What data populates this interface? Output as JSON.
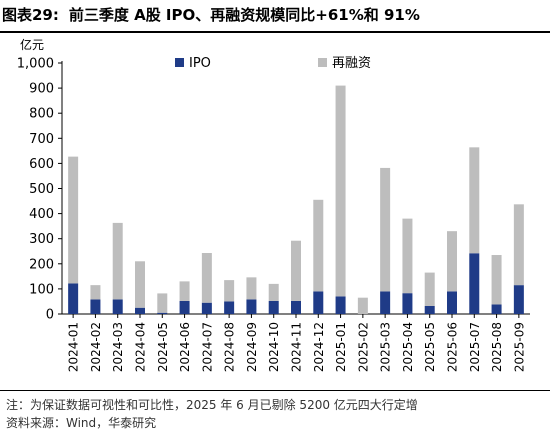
{
  "header": {
    "figure_label": "图表29:",
    "title": "前三季度 A股 IPO、再融资规模同比+61%和 91%"
  },
  "unit_label": "亿元",
  "footer": {
    "note": "注：为保证数据可视性和可比性，2025 年 6 月已剔除 5200 亿元四大行定增",
    "source": "资料来源：Wind，华泰研究"
  },
  "colors": {
    "ipo": "#1f3b87",
    "refinancing": "#bdbdbd"
  },
  "chart_data": {
    "type": "bar",
    "stacked": true,
    "categories": [
      "2024-01",
      "2024-02",
      "2024-03",
      "2024-04",
      "2024-05",
      "2024-06",
      "2024-07",
      "2024-08",
      "2024-09",
      "2024-10",
      "2024-11",
      "2024-12",
      "2025-01",
      "2025-02",
      "2025-03",
      "2025-04",
      "2025-05",
      "2025-06",
      "2025-07",
      "2025-08",
      "2025-09"
    ],
    "series": [
      {
        "name": "IPO",
        "values": [
          122,
          58,
          58,
          25,
          5,
          52,
          45,
          50,
          58,
          52,
          52,
          90,
          70,
          0,
          90,
          83,
          32,
          90,
          242,
          38,
          115
        ]
      },
      {
        "name": "再融资",
        "values": [
          505,
          57,
          305,
          185,
          77,
          78,
          198,
          85,
          88,
          68,
          240,
          365,
          840,
          65,
          492,
          297,
          133,
          240,
          422,
          197,
          322
        ]
      }
    ],
    "yticks": [
      "0",
      "100",
      "200",
      "300",
      "400",
      "500",
      "600",
      "700",
      "800",
      "900",
      "1,000"
    ],
    "ylim": [
      0,
      1000
    ],
    "title": "",
    "xlabel": "",
    "ylabel": "亿元",
    "legend": "top",
    "grid": false
  }
}
